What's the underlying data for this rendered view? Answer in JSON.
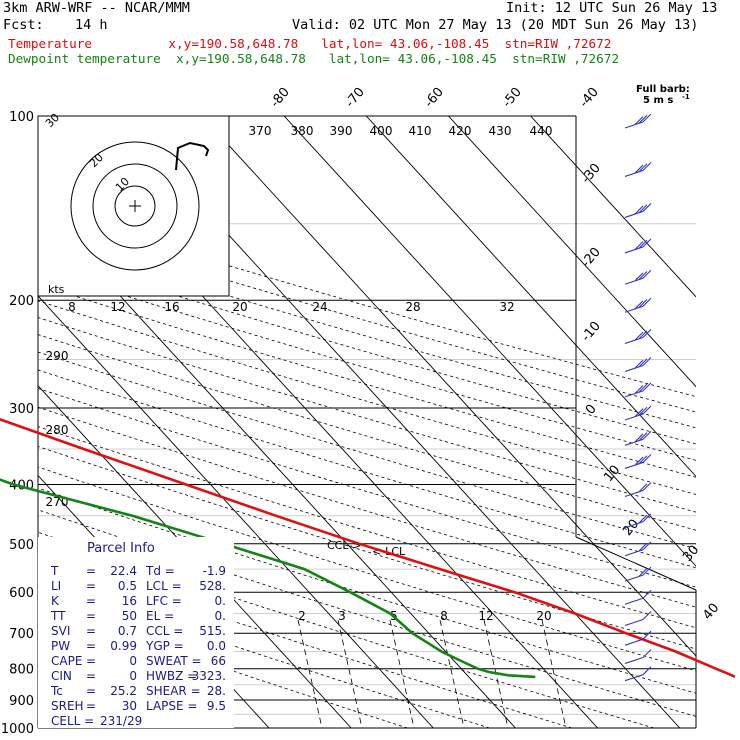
{
  "header": {
    "model": "3km ARW-WRF -- NCAR/MMM",
    "init": "Init: 12 UTC Sun 26 May 13",
    "fcst_label": "Fcst:",
    "fcst_value": "14 h",
    "valid": "Valid: 02 UTC Mon 27 May 13 (20 MDT Sun 26 May 13)",
    "temp_line": "Temperature          x,y=190.58,648.78   lat,lon= 43.06,-108.45  stn=RIW ,72672",
    "dew_line": "Dewpoint temperature  x,y=190.58,648.78   lat,lon= 43.06,-108.45  stn=RIW ,72672"
  },
  "colors": {
    "temperature": "#e01010",
    "dewpoint": "#148414",
    "barb": "#3232c8",
    "parcel_text": "#1a1a8c",
    "grid": "#000000"
  },
  "barb_legend": {
    "line1": "Full barb:",
    "line2": "5 m s",
    "sup": "-1"
  },
  "hodograph": {
    "units": "kts",
    "ring_labels": [
      "10",
      "20",
      "30"
    ]
  },
  "parcel_info": {
    "title": "Parcel Info",
    "rows": [
      {
        "l1": "T",
        "v1": "22.4",
        "l2": "Td",
        "v2": "-1.9"
      },
      {
        "l1": "LI",
        "v1": "0.5",
        "l2": "LCL",
        "v2": "528."
      },
      {
        "l1": "K",
        "v1": "16",
        "l2": "LFC",
        "v2": "0."
      },
      {
        "l1": "TT",
        "v1": "50",
        "l2": "EL",
        "v2": "0."
      },
      {
        "l1": "SVI",
        "v1": "0.7",
        "l2": "CCL",
        "v2": "515."
      },
      {
        "l1": "PW",
        "v1": "0.99",
        "l2": "YGP",
        "v2": "0.0"
      },
      {
        "l1": "CAPE",
        "v1": "0",
        "l2": "SWEAT",
        "v2": "66"
      },
      {
        "l1": "CIN",
        "v1": "0",
        "l2": "HWBZ",
        "v2": "3323."
      },
      {
        "l1": "Tc",
        "v1": "25.2",
        "l2": "SHEAR",
        "v2": "28."
      },
      {
        "l1": "SREH",
        "v1": "30",
        "l2": "LAPSE",
        "v2": "9.5"
      },
      {
        "l1": "CELL",
        "v1": "231/29",
        "l2": "",
        "v2": ""
      }
    ]
  },
  "level_labels": {
    "ccl": "CCL->",
    "lcl": "<-LCL"
  },
  "chart_data": {
    "type": "line",
    "diagram": "skew-T log-P",
    "y_axis": {
      "label": "",
      "scale": "log",
      "ticks": [
        100,
        200,
        300,
        400,
        500,
        600,
        700,
        800,
        900,
        1000
      ]
    },
    "isotherm_labels": [
      "-80",
      "-70",
      "-60",
      "-50",
      "-40",
      "-30",
      "-20",
      "-10",
      "0",
      "10",
      "20",
      "30",
      "40"
    ],
    "dry_adiabat_labels": [
      "370",
      "380",
      "390",
      "400",
      "410",
      "420",
      "430",
      "440",
      "290",
      "280",
      "270"
    ],
    "theta_e_labels": [
      "8",
      "12",
      "16",
      "20",
      "24",
      "28",
      "32"
    ],
    "mixing_ratio_labels": [
      "2",
      "3",
      "5",
      "8",
      "12",
      "20"
    ],
    "series": [
      {
        "name": "Temperature",
        "color": "#e01010",
        "points": [
          [
            100,
            -60
          ],
          [
            110,
            -55.5
          ],
          [
            120,
            -53.5
          ],
          [
            130,
            -53
          ],
          [
            150,
            -52.5
          ],
          [
            165,
            -53
          ],
          [
            180,
            -53.5
          ],
          [
            195,
            -54.5
          ],
          [
            200,
            -54.5
          ],
          [
            210,
            -55
          ],
          [
            220,
            -53.5
          ],
          [
            250,
            -49
          ],
          [
            300,
            -41
          ],
          [
            350,
            -31.5
          ],
          [
            400,
            -23
          ],
          [
            450,
            -15.5
          ],
          [
            500,
            -8.5
          ],
          [
            528,
            -4.5
          ],
          [
            550,
            -1.5
          ],
          [
            600,
            5
          ],
          [
            650,
            10
          ],
          [
            700,
            14
          ],
          [
            750,
            18
          ],
          [
            800,
            21
          ],
          [
            820,
            22.2
          ],
          [
            825,
            22.4
          ]
        ]
      },
      {
        "name": "Dewpoint temperature",
        "color": "#148414",
        "points": [
          [
            100,
            -80
          ],
          [
            120,
            -82
          ],
          [
            140,
            -85
          ],
          [
            155,
            -88
          ],
          [
            170,
            -83
          ],
          [
            190,
            -76.5
          ],
          [
            210,
            -75
          ],
          [
            230,
            -74
          ],
          [
            260,
            -70
          ],
          [
            300,
            -64
          ],
          [
            350,
            -52
          ],
          [
            400,
            -44
          ],
          [
            450,
            -33
          ],
          [
            500,
            -25
          ],
          [
            550,
            -18
          ],
          [
            600,
            -15
          ],
          [
            650,
            -12.5
          ],
          [
            700,
            -12
          ],
          [
            750,
            -10.5
          ],
          [
            780,
            -9
          ],
          [
            800,
            -8
          ],
          [
            810,
            -7
          ],
          [
            820,
            -5
          ],
          [
            825,
            -1.9
          ]
        ]
      }
    ],
    "wind_barbs_m_s": [
      [
        100,
        17
      ],
      [
        120,
        17
      ],
      [
        140,
        17
      ],
      [
        160,
        17
      ],
      [
        180,
        17
      ],
      [
        200,
        17
      ],
      [
        225,
        17
      ],
      [
        250,
        17
      ],
      [
        275,
        17
      ],
      [
        300,
        17
      ],
      [
        330,
        16
      ],
      [
        360,
        16
      ],
      [
        400,
        14
      ],
      [
        450,
        14
      ],
      [
        500,
        12
      ],
      [
        550,
        10
      ],
      [
        600,
        8
      ],
      [
        650,
        7
      ],
      [
        700,
        6
      ],
      [
        750,
        5
      ],
      [
        800,
        5
      ]
    ],
    "hodograph_ring_radii_kts": [
      10,
      20,
      30
    ]
  }
}
